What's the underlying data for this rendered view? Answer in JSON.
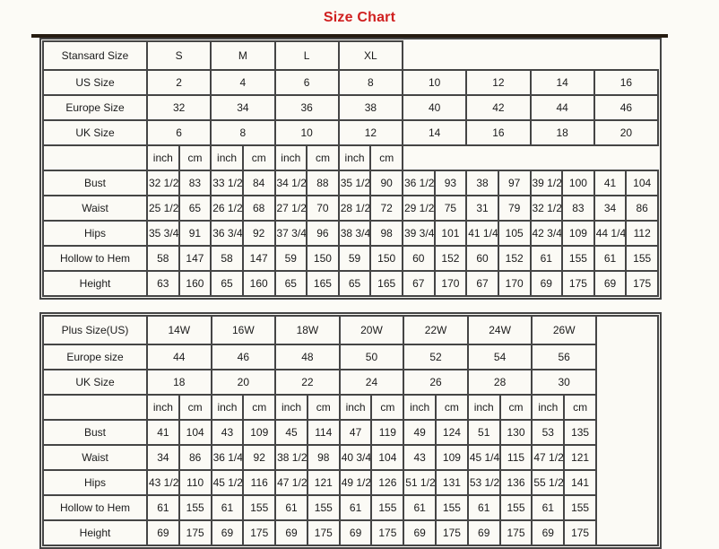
{
  "page_title": "Size Chart",
  "colors": {
    "title_red": "#d02020",
    "border_dark": "#454545",
    "top_bar": "#261c11",
    "background": "#fcfbf6"
  },
  "units": [
    "inch",
    "cm"
  ],
  "chart_data": [
    {
      "type": "table",
      "corner_label": "Stansard Size",
      "size_groups": [
        "S",
        "M",
        "L",
        "XL"
      ],
      "size_rows": [
        {
          "label": "US Size",
          "bold": true,
          "values": [
            "2",
            "4",
            "6",
            "8",
            "10",
            "12",
            "14",
            "16"
          ]
        },
        {
          "label": "Europe Size",
          "bold": false,
          "values": [
            "32",
            "34",
            "36",
            "38",
            "40",
            "42",
            "44",
            "46"
          ]
        },
        {
          "label": "UK Size",
          "bold": false,
          "values": [
            "6",
            "8",
            "10",
            "12",
            "14",
            "16",
            "18",
            "20"
          ]
        }
      ],
      "measure_rows": [
        {
          "label": "Bust",
          "values": [
            "32 1/2",
            "83",
            "33 1/2",
            "84",
            "34 1/2",
            "88",
            "35 1/2",
            "90",
            "36 1/2",
            "93",
            "38",
            "97",
            "39 1/2",
            "100",
            "41",
            "104"
          ]
        },
        {
          "label": "Waist",
          "values": [
            "25 1/2",
            "65",
            "26 1/2",
            "68",
            "27 1/2",
            "70",
            "28 1/2",
            "72",
            "29 1/2",
            "75",
            "31",
            "79",
            "32 1/2",
            "83",
            "34",
            "86"
          ]
        },
        {
          "label": "Hips",
          "values": [
            "35 3/4",
            "91",
            "36 3/4",
            "92",
            "37 3/4",
            "96",
            "38 3/4",
            "98",
            "39 3/4",
            "101",
            "41 1/4",
            "105",
            "42 3/4",
            "109",
            "44 1/4",
            "112"
          ]
        },
        {
          "label": "Hollow to Hem",
          "values": [
            "58",
            "147",
            "58",
            "147",
            "59",
            "150",
            "59",
            "150",
            "60",
            "152",
            "60",
            "152",
            "61",
            "155",
            "61",
            "155"
          ]
        },
        {
          "label": "Height",
          "values": [
            "63",
            "160",
            "65",
            "160",
            "65",
            "165",
            "65",
            "165",
            "67",
            "170",
            "67",
            "170",
            "69",
            "175",
            "69",
            "175"
          ]
        }
      ],
      "trailing_empty_column": false
    },
    {
      "type": "table",
      "corner_label": "Plus Size(US)",
      "size_groups": [
        "14W",
        "16W",
        "18W",
        "20W",
        "22W",
        "24W",
        "26W"
      ],
      "size_rows": [
        {
          "label": "Europe size",
          "bold": false,
          "values": [
            "44",
            "46",
            "48",
            "50",
            "52",
            "54",
            "56"
          ]
        },
        {
          "label": "UK Size",
          "bold": false,
          "values": [
            "18",
            "20",
            "22",
            "24",
            "26",
            "28",
            "30"
          ]
        }
      ],
      "measure_rows": [
        {
          "label": "Bust",
          "values": [
            "41",
            "104",
            "43",
            "109",
            "45",
            "114",
            "47",
            "119",
            "49",
            "124",
            "51",
            "130",
            "53",
            "135"
          ]
        },
        {
          "label": "Waist",
          "values": [
            "34",
            "86",
            "36 1/4",
            "92",
            "38 1/2",
            "98",
            "40 3/4",
            "104",
            "43",
            "109",
            "45 1/4",
            "115",
            "47 1/2",
            "121"
          ]
        },
        {
          "label": "Hips",
          "values": [
            "43 1/2",
            "110",
            "45 1/2",
            "116",
            "47 1/2",
            "121",
            "49 1/2",
            "126",
            "51 1/2",
            "131",
            "53 1/2",
            "136",
            "55 1/2",
            "141"
          ]
        },
        {
          "label": "Hollow to Hem",
          "values": [
            "61",
            "155",
            "61",
            "155",
            "61",
            "155",
            "61",
            "155",
            "61",
            "155",
            "61",
            "155",
            "61",
            "155"
          ]
        },
        {
          "label": "Height",
          "values": [
            "69",
            "175",
            "69",
            "175",
            "69",
            "175",
            "69",
            "175",
            "69",
            "175",
            "69",
            "175",
            "69",
            "175"
          ]
        }
      ],
      "trailing_empty_column": true
    }
  ]
}
